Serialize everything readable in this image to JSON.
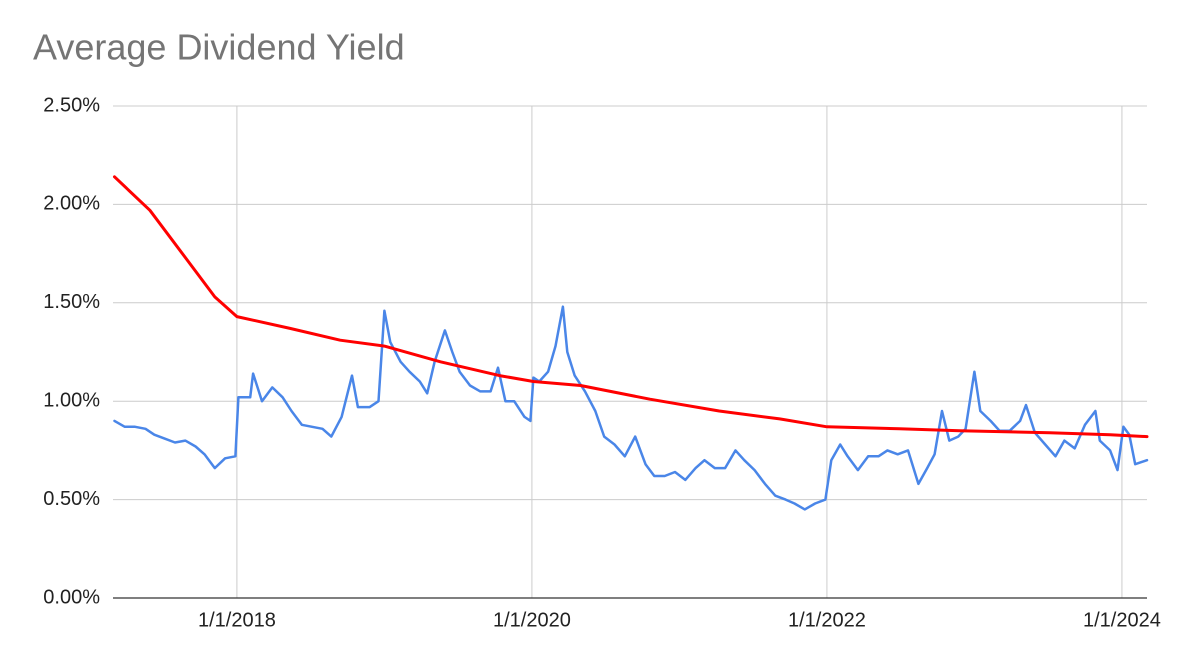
{
  "chart_data": {
    "type": "line",
    "title": "Average Dividend Yield",
    "xlim": [
      2017.16,
      2024.17
    ],
    "xticks": [
      {
        "value": 2018,
        "label": "1/1/2018"
      },
      {
        "value": 2020,
        "label": "1/1/2020"
      },
      {
        "value": 2022,
        "label": "1/1/2022"
      },
      {
        "value": 2024,
        "label": "1/1/2024"
      }
    ],
    "ylim": [
      0,
      2.5
    ],
    "yticks": [
      {
        "value": 0,
        "label": "0.00%"
      },
      {
        "value": 0.5,
        "label": "0.50%"
      },
      {
        "value": 1,
        "label": "1.00%"
      },
      {
        "value": 1.5,
        "label": "1.50%"
      },
      {
        "value": 2,
        "label": "2.00%"
      },
      {
        "value": 2.5,
        "label": "2.50%"
      }
    ],
    "grid": true,
    "series": [
      {
        "color": "#4a86e8",
        "x": [
          2017.17,
          2017.24,
          2017.31,
          2017.38,
          2017.44,
          2017.51,
          2017.58,
          2017.65,
          2017.72,
          2017.78,
          2017.85,
          2017.92,
          2017.99,
          2018.01,
          2018.09,
          2018.11,
          2018.17,
          2018.24,
          2018.31,
          2018.37,
          2018.44,
          2018.51,
          2018.58,
          2018.64,
          2018.71,
          2018.78,
          2018.82,
          2018.9,
          2018.96,
          2019.0,
          2019.04,
          2019.11,
          2019.17,
          2019.24,
          2019.29,
          2019.34,
          2019.41,
          2019.46,
          2019.51,
          2019.58,
          2019.65,
          2019.72,
          2019.77,
          2019.82,
          2019.88,
          2019.95,
          2019.99,
          2020.01,
          2020.05,
          2020.11,
          2020.16,
          2020.21,
          2020.24,
          2020.29,
          2020.36,
          2020.43,
          2020.49,
          2020.56,
          2020.63,
          2020.7,
          2020.77,
          2020.83,
          2020.9,
          2020.97,
          2021.04,
          2021.11,
          2021.17,
          2021.24,
          2021.31,
          2021.38,
          2021.44,
          2021.51,
          2021.58,
          2021.65,
          2021.72,
          2021.78,
          2021.85,
          2021.92,
          2021.99,
          2022.03,
          2022.09,
          2022.14,
          2022.21,
          2022.28,
          2022.35,
          2022.41,
          2022.48,
          2022.55,
          2022.62,
          2022.68,
          2022.73,
          2022.78,
          2022.83,
          2022.89,
          2022.94,
          2023.0,
          2023.04,
          2023.11,
          2023.17,
          2023.24,
          2023.31,
          2023.35,
          2023.41,
          2023.48,
          2023.55,
          2023.61,
          2023.68,
          2023.75,
          2023.82,
          2023.85,
          2023.92,
          2023.97,
          2024.01,
          2024.05,
          2024.09,
          2024.17
        ],
        "values": [
          0.9,
          0.87,
          0.87,
          0.86,
          0.83,
          0.81,
          0.79,
          0.8,
          0.77,
          0.73,
          0.66,
          0.71,
          0.72,
          1.02,
          1.02,
          1.14,
          1.0,
          1.07,
          1.02,
          0.95,
          0.88,
          0.87,
          0.86,
          0.82,
          0.92,
          1.13,
          0.97,
          0.97,
          1.0,
          1.46,
          1.3,
          1.2,
          1.15,
          1.1,
          1.04,
          1.2,
          1.36,
          1.25,
          1.15,
          1.08,
          1.05,
          1.05,
          1.17,
          1.0,
          1.0,
          0.92,
          0.9,
          1.12,
          1.1,
          1.15,
          1.28,
          1.48,
          1.25,
          1.13,
          1.05,
          0.95,
          0.82,
          0.78,
          0.72,
          0.82,
          0.68,
          0.62,
          0.62,
          0.64,
          0.6,
          0.66,
          0.7,
          0.66,
          0.66,
          0.75,
          0.7,
          0.65,
          0.58,
          0.52,
          0.5,
          0.48,
          0.45,
          0.48,
          0.5,
          0.7,
          0.78,
          0.72,
          0.65,
          0.72,
          0.72,
          0.75,
          0.73,
          0.75,
          0.58,
          0.66,
          0.73,
          0.95,
          0.8,
          0.82,
          0.86,
          1.15,
          0.95,
          0.9,
          0.85,
          0.85,
          0.9,
          0.98,
          0.84,
          0.78,
          0.72,
          0.8,
          0.76,
          0.88,
          0.95,
          0.8,
          0.75,
          0.65,
          0.87,
          0.83,
          0.68,
          0.7
        ]
      },
      {
        "color": "#ff0000",
        "x": [
          2017.17,
          2017.41,
          2017.65,
          2017.85,
          2018.0,
          2018.36,
          2018.7,
          2019.0,
          2019.38,
          2019.78,
          2020.01,
          2020.33,
          2020.8,
          2021.27,
          2021.68,
          2022.0,
          2022.49,
          2022.9,
          2023.51,
          2023.92,
          2024.17
        ],
        "values": [
          2.14,
          1.97,
          1.73,
          1.53,
          1.43,
          1.37,
          1.31,
          1.28,
          1.2,
          1.13,
          1.1,
          1.08,
          1.01,
          0.95,
          0.91,
          0.87,
          0.86,
          0.85,
          0.84,
          0.83,
          0.82
        ]
      }
    ]
  }
}
